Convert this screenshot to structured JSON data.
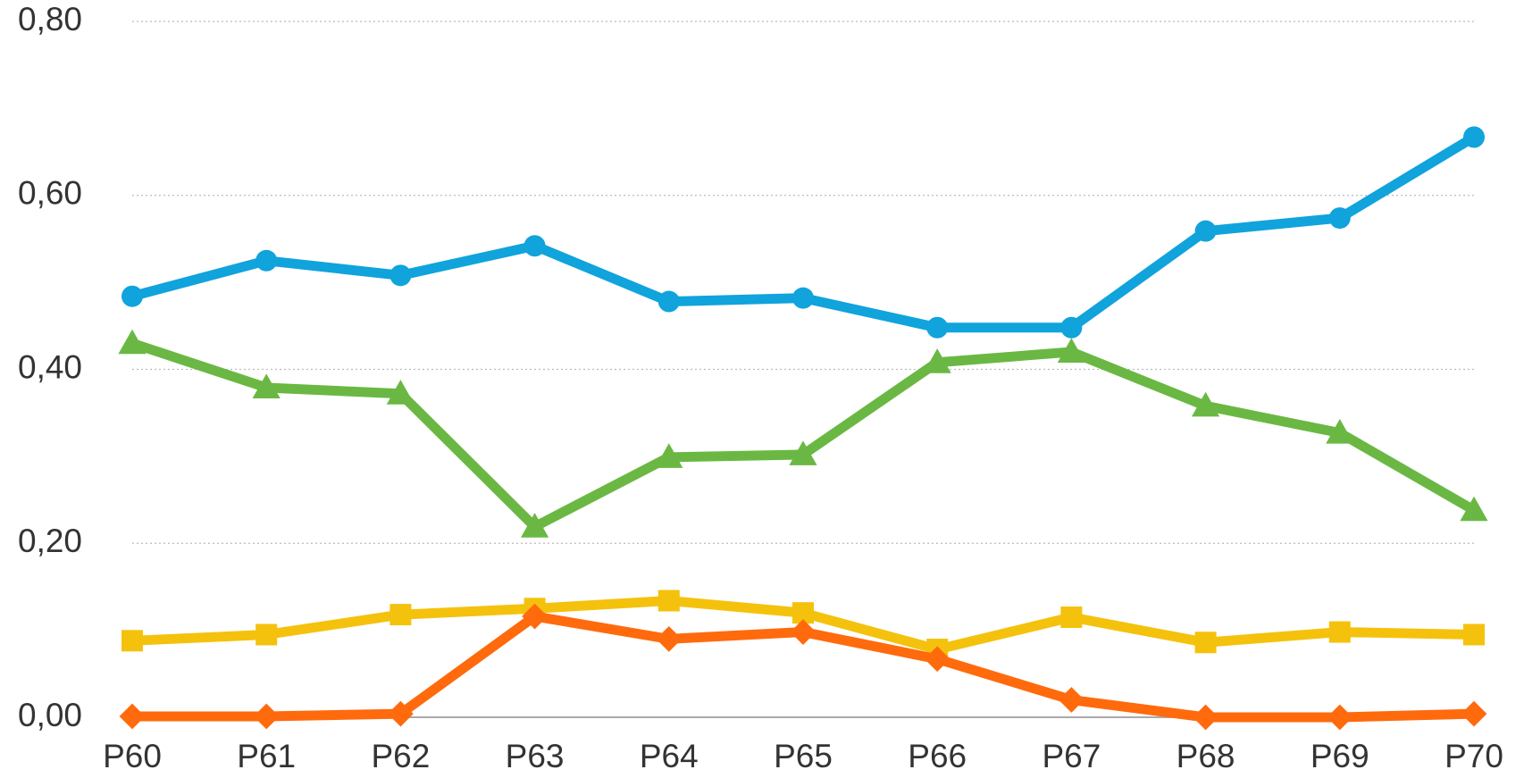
{
  "chart_data": {
    "type": "line",
    "categories": [
      "P60",
      "P61",
      "P62",
      "P63",
      "P64",
      "P65",
      "P66",
      "P67",
      "P68",
      "P69",
      "P70"
    ],
    "series": [
      {
        "color": "#6ab843",
        "marker": "triangle",
        "values": [
          0.43,
          0.379,
          0.372,
          0.219,
          0.299,
          0.302,
          0.408,
          0.42,
          0.358,
          0.327,
          0.238
        ]
      },
      {
        "color": "#f4c20d",
        "marker": "square",
        "values": [
          0.088,
          0.095,
          0.118,
          0.125,
          0.134,
          0.12,
          0.078,
          0.115,
          0.086,
          0.098,
          0.095
        ]
      },
      {
        "color": "#ff6a0d",
        "marker": "diamond",
        "values": [
          0.001,
          0.001,
          0.004,
          0.116,
          0.09,
          0.098,
          0.067,
          0.02,
          0.0,
          0.0,
          0.004
        ]
      },
      {
        "color": "#10a3dc",
        "marker": "circle",
        "values": [
          0.484,
          0.525,
          0.508,
          0.542,
          0.478,
          0.482,
          0.448,
          0.448,
          0.559,
          0.574,
          0.667
        ]
      }
    ],
    "ylim": [
      0,
      0.8
    ],
    "yticks": [
      {
        "value": 0,
        "label": "0,00"
      },
      {
        "value": 0.2,
        "label": "0,20"
      },
      {
        "value": 0.4,
        "label": "0,40"
      },
      {
        "value": 0.6,
        "label": "0,60"
      },
      {
        "value": 0.8,
        "label": "0,80"
      }
    ],
    "grid": true
  }
}
